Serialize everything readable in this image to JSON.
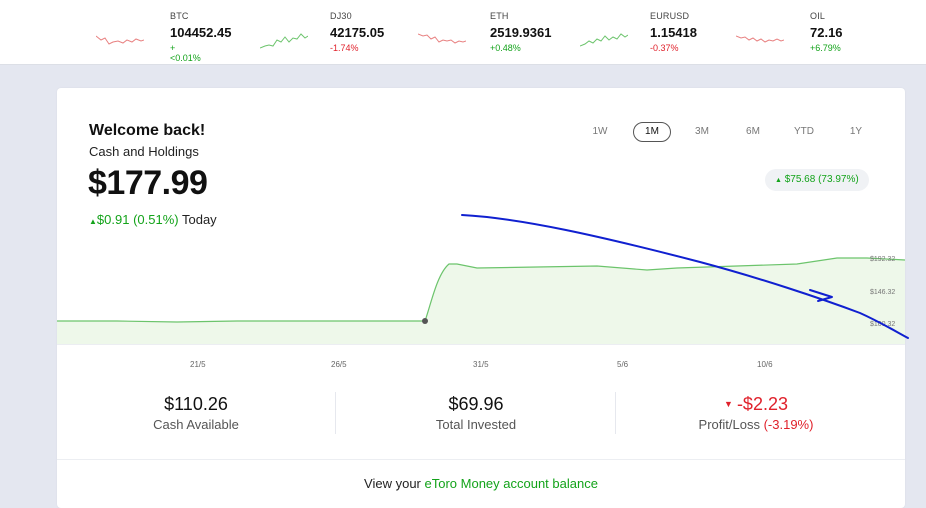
{
  "tickers": [
    {
      "symbol": "BTC",
      "price": "104452.45",
      "change": "+<0.01%",
      "direction": "up"
    },
    {
      "symbol": "DJ30",
      "price": "42175.05",
      "change": "-1.74%",
      "direction": "down"
    },
    {
      "symbol": "ETH",
      "price": "2519.9361",
      "change": "+0.48%",
      "direction": "up"
    },
    {
      "symbol": "EURUSD",
      "price": "1.15418",
      "change": "-0.37%",
      "direction": "down"
    },
    {
      "symbol": "OIL",
      "price": "72.16",
      "change": "+6.79%",
      "direction": "up"
    }
  ],
  "portfolio": {
    "greeting": "Welcome back!",
    "subtitle": "Cash and Holdings",
    "balance": "$177.99",
    "today_change": "$0.91 (0.51%)",
    "today_label": "Today",
    "period_gain": "$75.68 (73.97%)"
  },
  "periods": [
    "1W",
    "1M",
    "3M",
    "6M",
    "YTD",
    "1Y"
  ],
  "selected_period": "1M",
  "chart_data": {
    "type": "area",
    "y_tick_labels": [
      "$192.32",
      "$146.32",
      "$100.32"
    ],
    "x_tick_labels": [
      "21/5",
      "26/5",
      "31/5",
      "5/6",
      "10/6"
    ],
    "line_color": "#5cc65c",
    "fill_color": "#eaf7e6"
  },
  "stats": {
    "cash_available": {
      "value": "$110.26",
      "label": "Cash Available"
    },
    "total_invested": {
      "value": "$69.96",
      "label": "Total Invested"
    },
    "profit_loss": {
      "value": "-$2.23",
      "label": "Profit/Loss",
      "pct": "(-3.19%)"
    }
  },
  "footer": {
    "prefix": "View your",
    "link": "eToro Money account balance"
  },
  "colors": {
    "up": "#13a31a",
    "down": "#e0212b",
    "annotation": "#1020d0"
  }
}
